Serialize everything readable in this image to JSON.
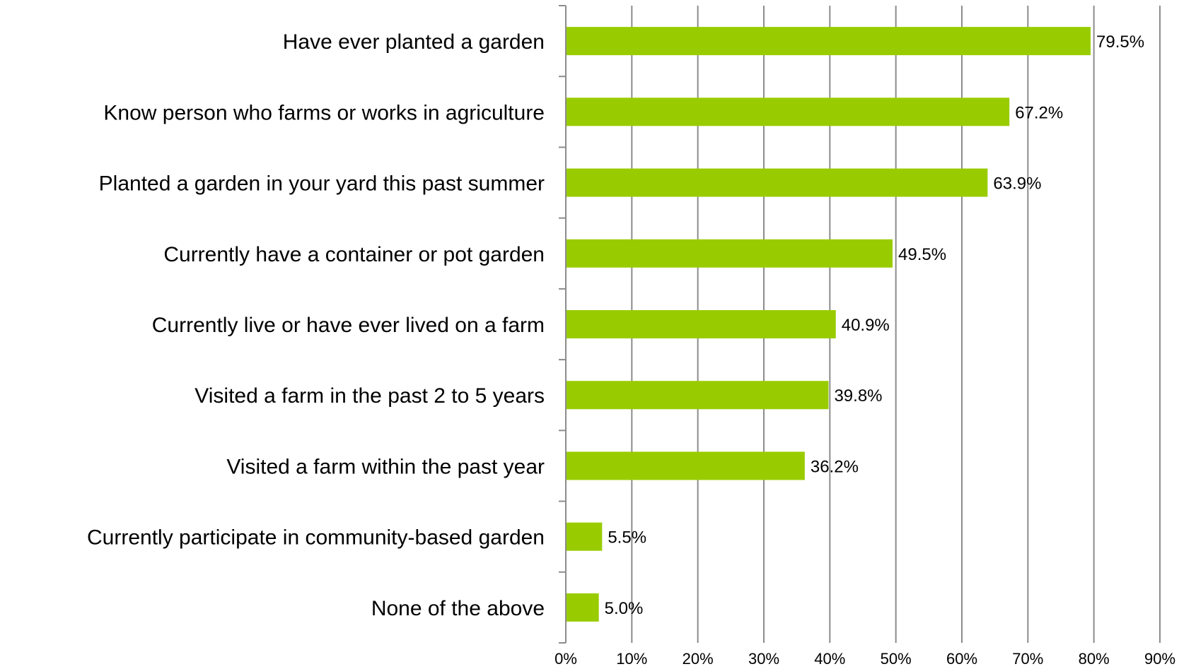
{
  "chart_data": {
    "type": "bar",
    "orientation": "horizontal",
    "categories": [
      "Have ever planted a garden",
      "Know person who farms or works in agriculture",
      "Planted a garden in your yard this past summer",
      "Currently have a container or pot garden",
      "Currently live or have ever lived on a farm",
      "Visited a farm in the past 2 to 5 years",
      "Visited a farm within the past year",
      "Currently participate in community-based garden",
      "None of the above"
    ],
    "values": [
      79.5,
      67.2,
      63.9,
      49.5,
      40.9,
      39.8,
      36.2,
      5.5,
      5.0
    ],
    "data_labels": [
      "79.5%",
      "67.2%",
      "63.9%",
      "49.5%",
      "40.9%",
      "39.8%",
      "36.2%",
      "5.5%",
      "5.0%"
    ],
    "x_ticks": [
      "0%",
      "10%",
      "20%",
      "30%",
      "40%",
      "50%",
      "60%",
      "70%",
      "80%",
      "90%"
    ],
    "xlim": [
      0,
      90
    ],
    "x_tick_step": 10,
    "grid": "vertical",
    "bar_color": "#99CC00",
    "title": "",
    "xlabel": "",
    "ylabel": ""
  }
}
